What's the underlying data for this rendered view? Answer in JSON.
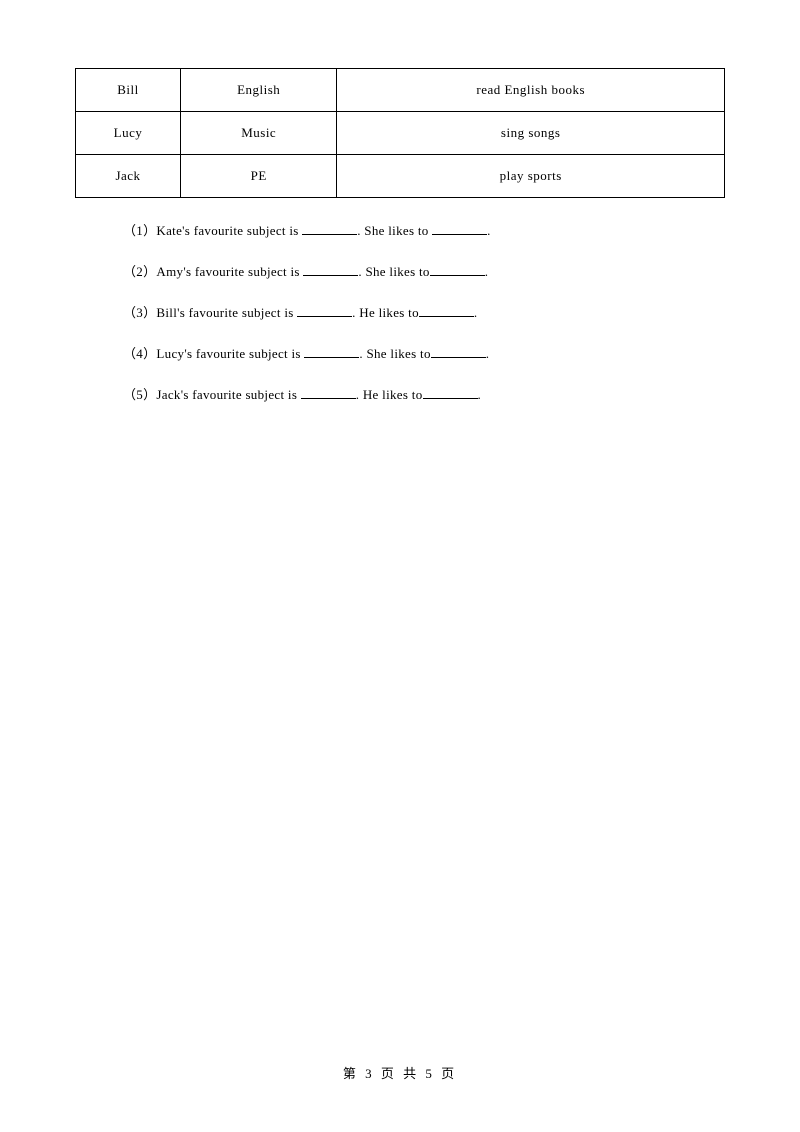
{
  "table": {
    "rows": [
      [
        "Bill",
        "English",
        "read English books"
      ],
      [
        "Lucy",
        "Music",
        "sing songs"
      ],
      [
        "Jack",
        "PE",
        "play sports"
      ]
    ]
  },
  "questions": [
    {
      "number": "（1）",
      "name": "Kate",
      "pronoun": "She",
      "text_before_blank1": "'s favourite subject is ",
      "text_mid": ". ",
      "text_likes": " likes to ",
      "text_end": "."
    },
    {
      "number": "（2）",
      "name": "Amy",
      "pronoun": "She",
      "text_before_blank1": "'s favourite subject is ",
      "text_mid": ". ",
      "text_likes": " likes to",
      "text_end": "."
    },
    {
      "number": "（3）",
      "name": "Bill",
      "pronoun": "He",
      "text_before_blank1": "'s favourite subject is ",
      "text_mid": ". ",
      "text_likes": " likes to",
      "text_end": "."
    },
    {
      "number": "（4）",
      "name": "Lucy",
      "pronoun": "She",
      "text_before_blank1": "'s favourite subject is ",
      "text_mid": ". ",
      "text_likes": " likes to",
      "text_end": "."
    },
    {
      "number": "（5）",
      "name": "Jack",
      "pronoun": "He",
      "text_before_blank1": "'s favourite subject is ",
      "text_mid": ". ",
      "text_likes": " likes to",
      "text_end": "."
    }
  ],
  "footer": "第 3 页 共 5 页"
}
